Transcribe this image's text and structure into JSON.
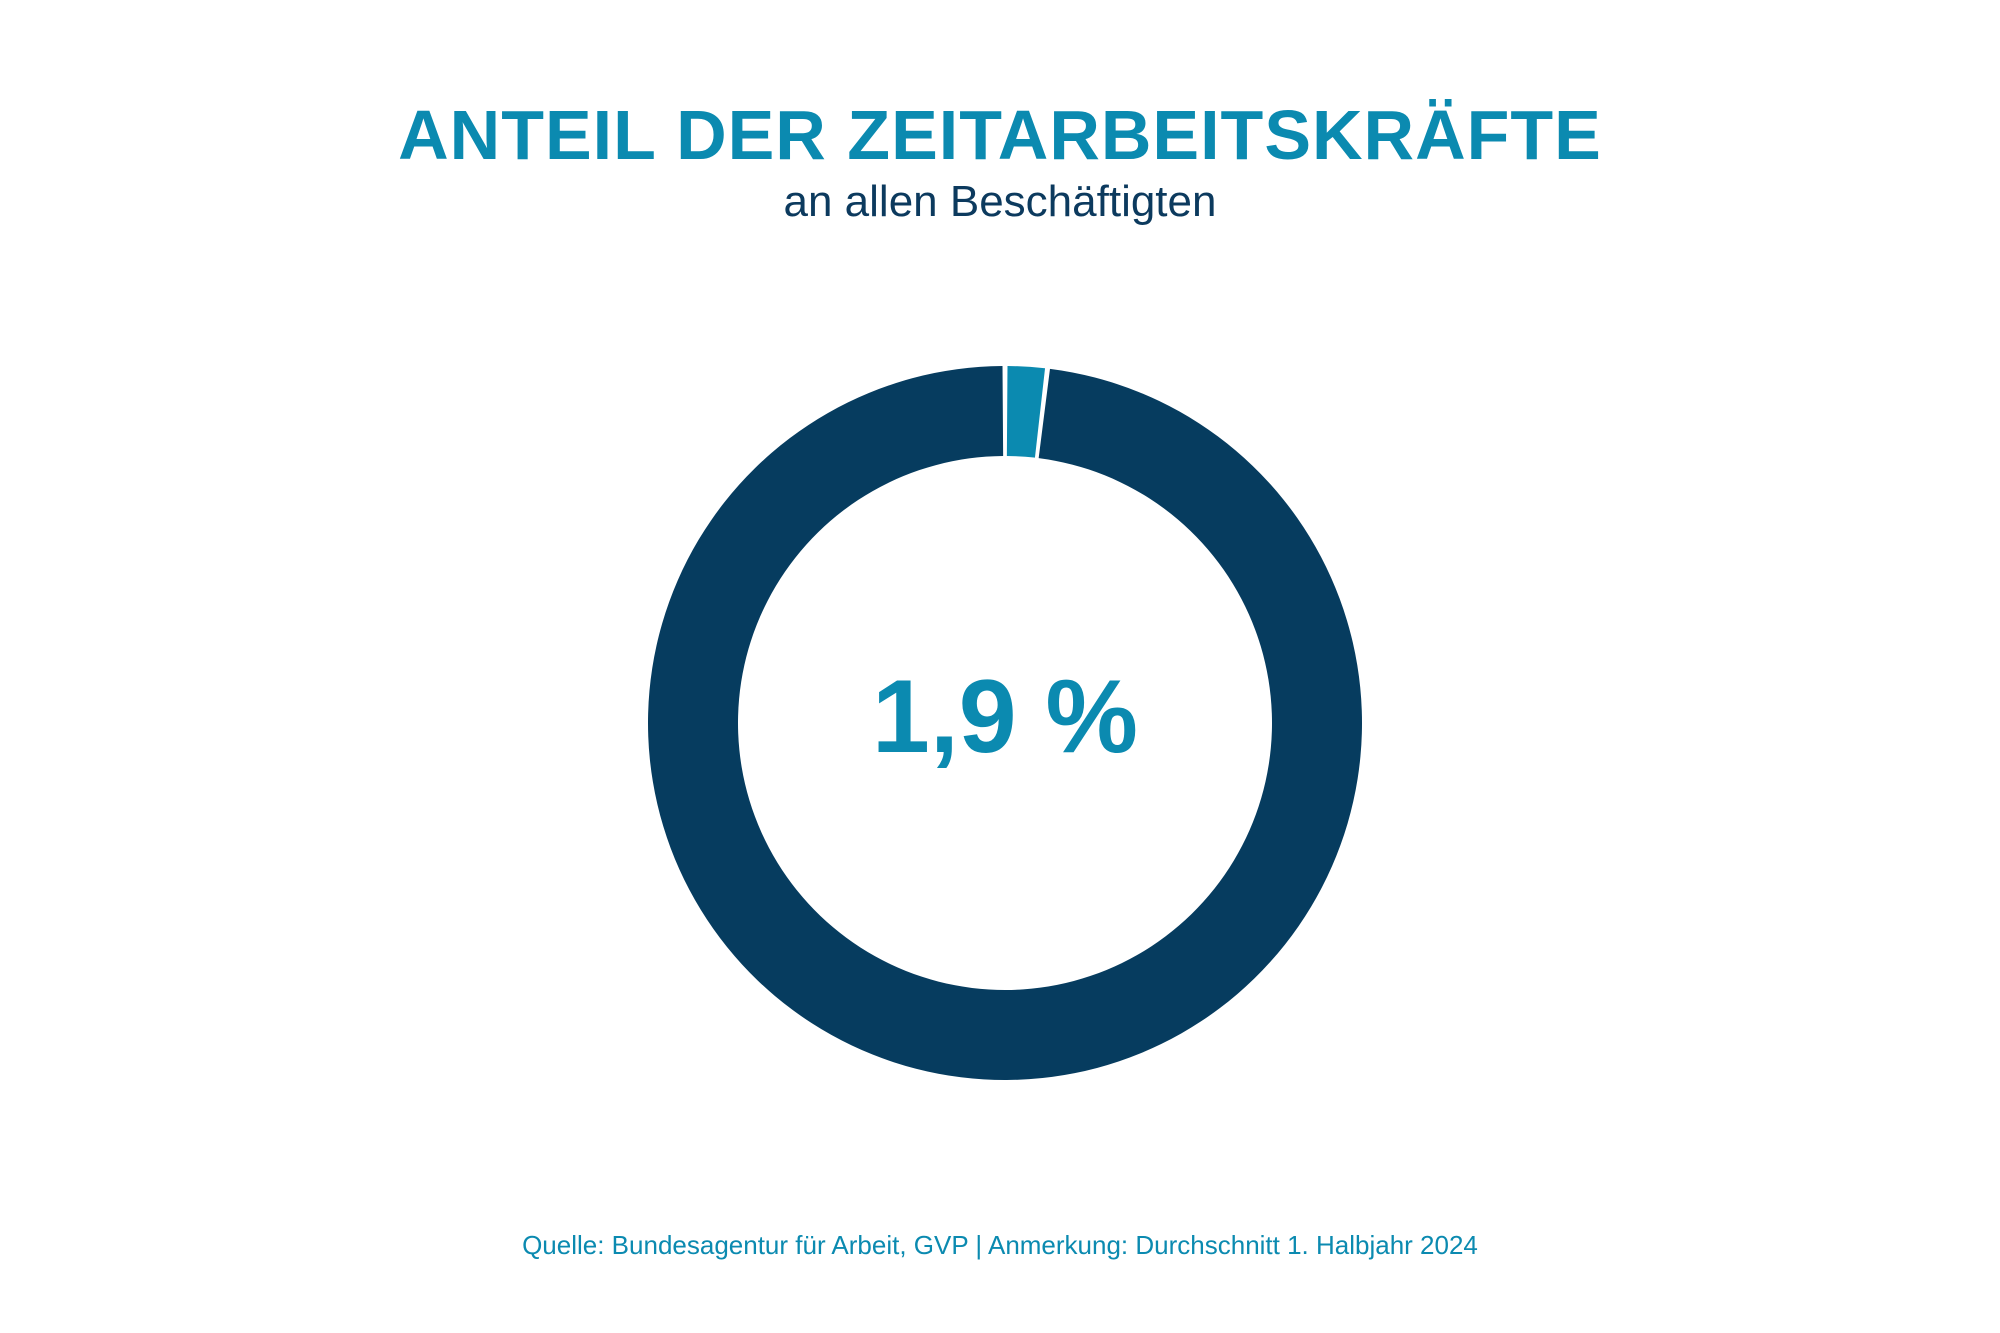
{
  "header": {
    "title": "ANTEIL DER ZEITARBEITSKRÄFTE",
    "subtitle": "an allen Beschäftigten"
  },
  "footer": {
    "source": "Quelle: Bundesagentur für Arbeit, GVP | Anmerkung: Durchschnitt 1. Halbjahr 2024"
  },
  "colors": {
    "highlight": "#0b8ab0",
    "base": "#063c5f",
    "text_dark": "#0c3a5e",
    "background": "#ffffff"
  },
  "chart_data": {
    "type": "pie",
    "variant": "donut",
    "title": "ANTEIL DER ZEITARBEITSKRÄFTE",
    "subtitle": "an allen Beschäftigten",
    "center_label": "1,9 %",
    "slices": [
      {
        "value": 1.9,
        "color": "#0b8ab0"
      },
      {
        "value": 98.1,
        "color": "#063c5f"
      }
    ]
  }
}
